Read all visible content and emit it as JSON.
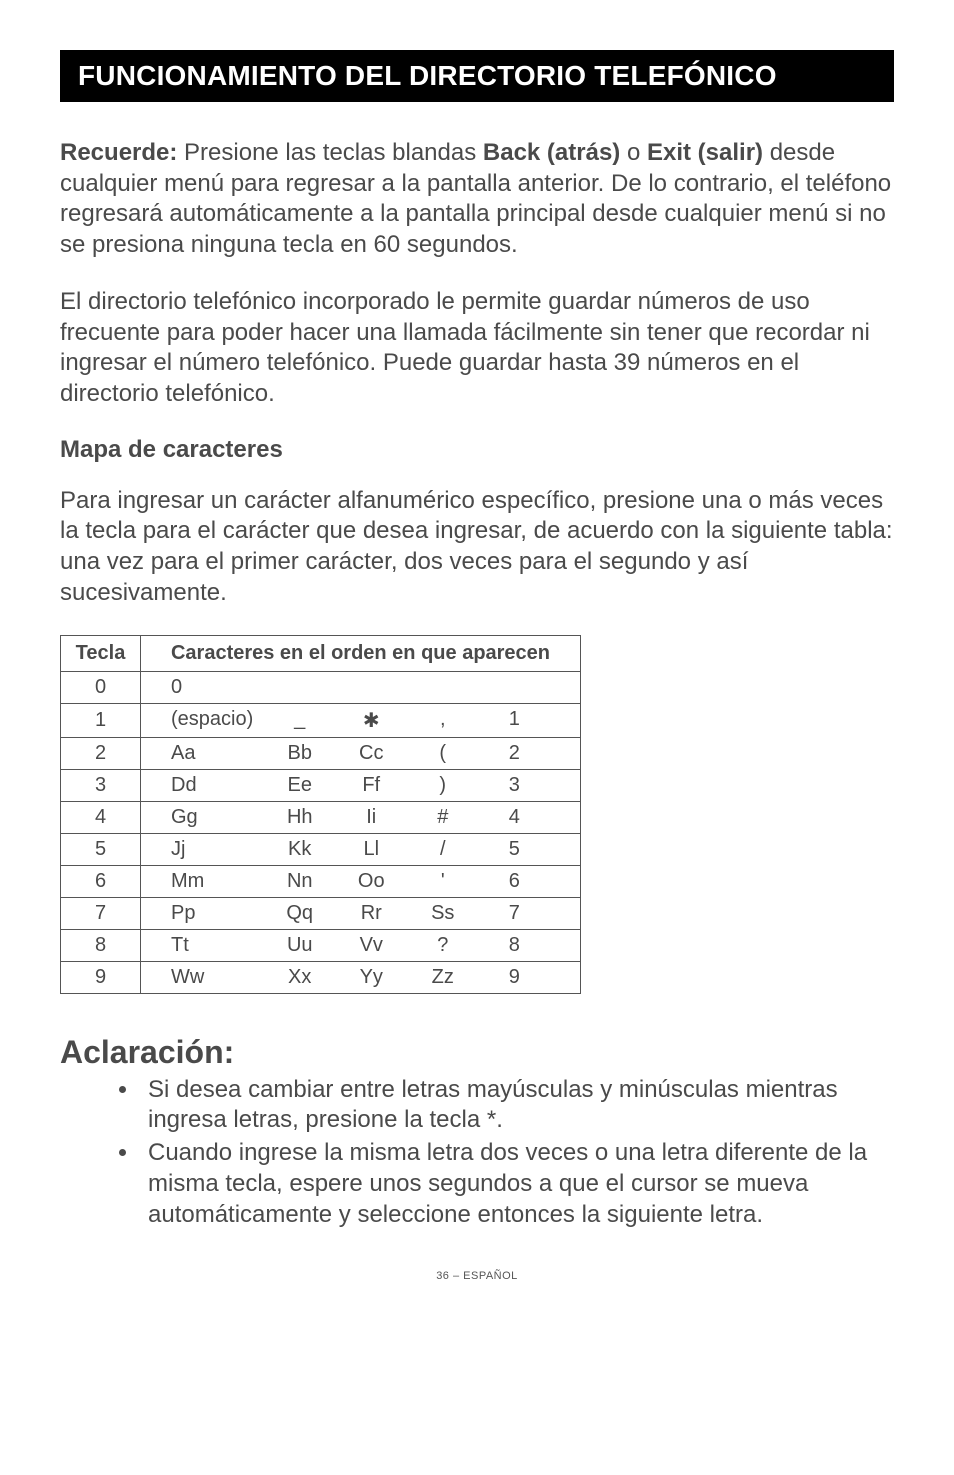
{
  "banner": {
    "title": "FUNCIONAMIENTO DEL DIRECTORIO TELEFÓNICO"
  },
  "p1": {
    "lead": "Recuerde:",
    "t1": " Presione las teclas blandas ",
    "b1": "Back (atrás)",
    "t2": " o ",
    "b2": "Exit (salir)",
    "t3": " desde cualquier menú para regresar a la pantalla anterior. De lo contrario, el teléfono regresará automáticamente a la pantalla principal desde cualquier menú si no se presiona ninguna tecla en 60 segundos."
  },
  "p2": "El directorio telefónico incorporado le permite guardar números de uso frecuente para poder hacer una llamada fácilmente sin tener que recordar ni ingresar el número telefónico. Puede guardar hasta 39 números en el directorio telefónico.",
  "subhead": "Mapa de caracteres",
  "p3": "Para ingresar un carácter alfanumérico específico, presione una o más veces la tecla para el carácter que desea ingresar, de acuerdo con la siguiente tabla: una vez para el primer carácter, dos veces para el segundo y así sucesivamente.",
  "table": {
    "head_key": "Tecla",
    "head_row": "Caracteres en el orden en que aparecen",
    "rows": [
      {
        "key": "0",
        "c": [
          "0",
          "",
          "",
          "",
          ""
        ]
      },
      {
        "key": "1",
        "c": [
          "(espacio)",
          "_",
          "✱",
          ",",
          "1"
        ]
      },
      {
        "key": "2",
        "c": [
          "Aa",
          "Bb",
          "Cc",
          "(",
          "2"
        ]
      },
      {
        "key": "3",
        "c": [
          "Dd",
          "Ee",
          "Ff",
          ")",
          "3"
        ]
      },
      {
        "key": "4",
        "c": [
          "Gg",
          "Hh",
          "Ii",
          "#",
          "4"
        ]
      },
      {
        "key": "5",
        "c": [
          "Jj",
          "Kk",
          "Ll",
          "/",
          "5"
        ]
      },
      {
        "key": "6",
        "c": [
          "Mm",
          "Nn",
          "Oo",
          "'",
          "6"
        ]
      },
      {
        "key": "7",
        "c": [
          "Pp",
          "Qq",
          "Rr",
          "Ss",
          "7"
        ]
      },
      {
        "key": "8",
        "c": [
          "Tt",
          "Uu",
          "Vv",
          "?",
          "8"
        ]
      },
      {
        "key": "9",
        "c": [
          "Ww",
          "Xx",
          "Yy",
          "Zz",
          "9"
        ]
      }
    ]
  },
  "notes": {
    "head": "Aclaración:",
    "items": [
      "Si desea cambiar entre letras mayúsculas y minúsculas mientras ingresa letras, presione la tecla *.",
      "Cuando ingrese la misma letra dos veces o una letra diferente de la misma tecla, espere unos segundos a que el cursor se mueva automáticamente y seleccione entonces la siguiente letra."
    ]
  },
  "footer": "36 – ESPAÑOL"
}
